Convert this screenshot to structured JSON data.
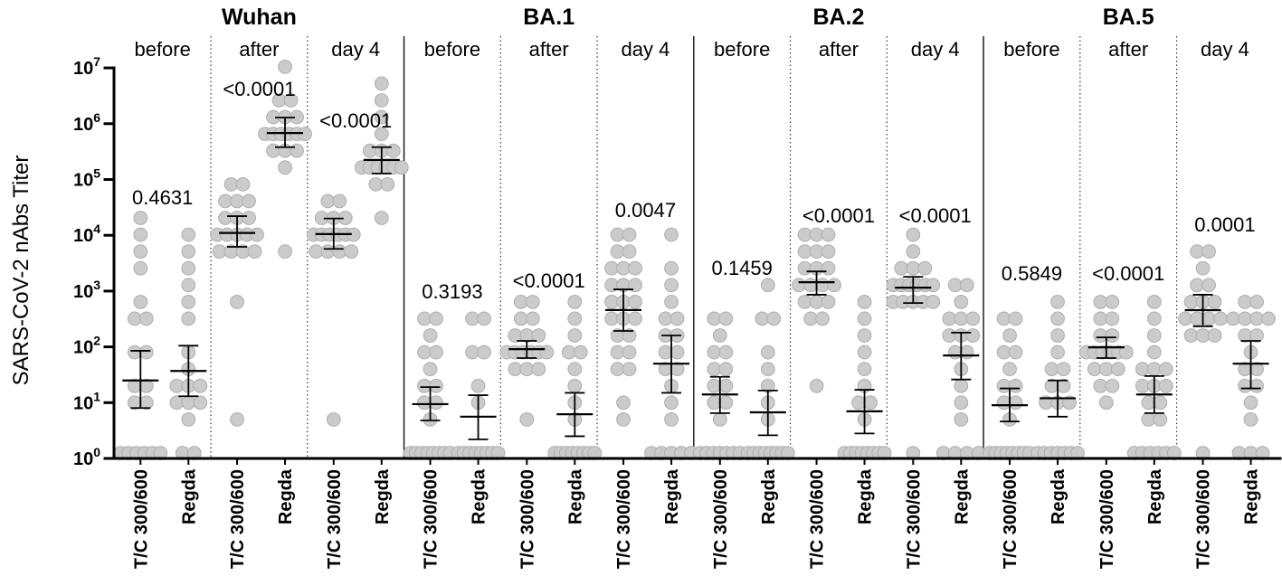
{
  "chart_data": {
    "type": "scatter",
    "ylabel": "SARS-CoV-2 nAbs Titer",
    "ylim": [
      1,
      10000000
    ],
    "y_ticks": [
      {
        "base": "10",
        "exp": "0"
      },
      {
        "base": "10",
        "exp": "1"
      },
      {
        "base": "10",
        "exp": "2"
      },
      {
        "base": "10",
        "exp": "3"
      },
      {
        "base": "10",
        "exp": "4"
      },
      {
        "base": "10",
        "exp": "5"
      },
      {
        "base": "10",
        "exp": "6"
      },
      {
        "base": "10",
        "exp": "7"
      }
    ],
    "colors": {
      "point_fill": "#cbcbcb",
      "point_stroke": "#afafaf",
      "line": "#000000"
    },
    "variants": [
      {
        "name": "Wuhan",
        "timepoints": [
          {
            "label": "before",
            "p_value": "0.4631",
            "groups": [
              {
                "name": "T/C 300/600",
                "mean": 25,
                "ci": [
                  8,
                  85
                ],
                "values": [
                  20480,
                  10240,
                  5120,
                  2560,
                  640,
                  320,
                  320,
                  80,
                  80,
                  20,
                  20,
                  10,
                  10,
                  1.25,
                  1.25,
                  1.25,
                  1.25,
                  1.25,
                  1.25
                ]
              },
              {
                "name": "Regda",
                "mean": 37,
                "ci": [
                  13,
                  105
                ],
                "values": [
                  10240,
                  5120,
                  2560,
                  1280,
                  640,
                  320,
                  80,
                  40,
                  20,
                  20,
                  20,
                  10,
                  10,
                  10,
                  5,
                  1.25,
                  1.25
                ]
              }
            ]
          },
          {
            "label": "after",
            "p_value": "<0.0001",
            "groups": [
              {
                "name": "T/C 300/600",
                "mean": 11000,
                "ci": [
                  6200,
                  22000
                ],
                "values": [
                  81920,
                  81920,
                  40960,
                  40960,
                  40960,
                  20480,
                  20480,
                  20480,
                  10240,
                  10240,
                  10240,
                  10240,
                  10240,
                  5120,
                  5120,
                  5120,
                  5120,
                  640,
                  5
                ]
              },
              {
                "name": "Regda",
                "mean": 680000,
                "ci": [
                  380000,
                  1290000
                ],
                "values": [
                  10485760,
                  2621440,
                  2621440,
                  1310720,
                  1310720,
                  1310720,
                  655360,
                  655360,
                  655360,
                  655360,
                  655360,
                  655360,
                  327680,
                  327680,
                  327680,
                  163840,
                  5120
                ]
              }
            ]
          },
          {
            "label": "day 4",
            "p_value": "<0.0001",
            "groups": [
              {
                "name": "T/C 300/600",
                "mean": 10500,
                "ci": [
                  5700,
                  20000
                ],
                "values": [
                  40960,
                  40960,
                  20480,
                  20480,
                  20480,
                  10240,
                  10240,
                  10240,
                  10240,
                  10240,
                  10240,
                  5120,
                  5120,
                  5120,
                  5120,
                  5
                ]
              },
              {
                "name": "Regda",
                "mean": 224000,
                "ci": [
                  128000,
                  380000
                ],
                "values": [
                  5242880,
                  2621440,
                  1310720,
                  655360,
                  327680,
                  327680,
                  327680,
                  163840,
                  163840,
                  163840,
                  163840,
                  163840,
                  163840,
                  81920,
                  81920,
                  20480
                ]
              }
            ]
          }
        ]
      },
      {
        "name": "BA.1",
        "timepoints": [
          {
            "label": "before",
            "p_value": "0.3193",
            "groups": [
              {
                "name": "T/C 300/600",
                "mean": 9.4,
                "ci": [
                  4.8,
                  19
                ],
                "values": [
                  320,
                  320,
                  160,
                  80,
                  80,
                  40,
                  20,
                  20,
                  10,
                  10,
                  5,
                  1.25,
                  1.25,
                  1.25,
                  1.25,
                  1.25,
                  1.25,
                  1.25,
                  1.25
                ]
              },
              {
                "name": "Regda",
                "mean": 5.6,
                "ci": [
                  2.2,
                  13.6
                ],
                "values": [
                  320,
                  320,
                  80,
                  80,
                  20,
                  10,
                  1.25,
                  1.25,
                  1.25,
                  1.25,
                  1.25,
                  1.25,
                  1.25,
                  1.25
                ]
              }
            ]
          },
          {
            "label": "after",
            "p_value": "<0.0001",
            "groups": [
              {
                "name": "T/C 300/600",
                "mean": 91,
                "ci": [
                  63,
                  128
                ],
                "values": [
                  640,
                  640,
                  320,
                  320,
                  160,
                  160,
                  160,
                  80,
                  80,
                  80,
                  80,
                  80,
                  80,
                  40,
                  40,
                  40,
                  5
                ]
              },
              {
                "name": "Regda",
                "mean": 6.2,
                "ci": [
                  2.5,
                  15
                ],
                "values": [
                  640,
                  320,
                  160,
                  80,
                  80,
                  40,
                  20,
                  10,
                  5,
                  1.25,
                  1.25,
                  1.25,
                  1.25,
                  1.25,
                  1.25,
                  1.25,
                  1.25
                ]
              }
            ]
          },
          {
            "label": "day 4",
            "p_value": "0.0047",
            "groups": [
              {
                "name": "T/C 300/600",
                "mean": 457,
                "ci": [
                  193,
                  1070
                ],
                "values": [
                  10240,
                  10240,
                  5120,
                  5120,
                  2560,
                  2560,
                  2560,
                  1280,
                  1280,
                  1280,
                  640,
                  640,
                  640,
                  320,
                  320,
                  320,
                  160,
                  160,
                  80,
                  80,
                  40,
                  40,
                  10,
                  5
                ]
              },
              {
                "name": "Regda",
                "mean": 50,
                "ci": [
                  15,
                  160
                ],
                "values": [
                  10240,
                  2560,
                  1280,
                  640,
                  320,
                  320,
                  160,
                  160,
                  80,
                  80,
                  40,
                  40,
                  20,
                  10,
                  5,
                  1.25,
                  1.25,
                  1.25,
                  1.25,
                  1.25
                ]
              }
            ]
          }
        ]
      },
      {
        "name": "BA.2",
        "timepoints": [
          {
            "label": "before",
            "p_value": "0.1459",
            "groups": [
              {
                "name": "T/C 300/600",
                "mean": 14,
                "ci": [
                  6.5,
                  29
                ],
                "values": [
                  320,
                  320,
                  160,
                  80,
                  80,
                  40,
                  40,
                  20,
                  20,
                  10,
                  10,
                  5,
                  1.25,
                  1.25,
                  1.25,
                  1.25,
                  1.25,
                  1.25,
                  1.25
                ]
              },
              {
                "name": "Regda",
                "mean": 6.7,
                "ci": [
                  2.6,
                  16.5
                ],
                "values": [
                  1280,
                  320,
                  320,
                  80,
                  40,
                  20,
                  10,
                  5,
                  1.25,
                  1.25,
                  1.25,
                  1.25,
                  1.25,
                  1.25,
                  1.25,
                  1.25
                ]
              }
            ]
          },
          {
            "label": "after",
            "p_value": "<0.0001",
            "groups": [
              {
                "name": "T/C 300/600",
                "mean": 1440,
                "ci": [
                  860,
                  2250
                ],
                "values": [
                  10240,
                  10240,
                  10240,
                  5120,
                  5120,
                  5120,
                  2560,
                  2560,
                  2560,
                  1280,
                  1280,
                  1280,
                  1280,
                  640,
                  640,
                  640,
                  320,
                  320,
                  20
                ]
              },
              {
                "name": "Regda",
                "mean": 7,
                "ci": [
                  2.8,
                  17
                ],
                "values": [
                  640,
                  320,
                  160,
                  80,
                  40,
                  20,
                  10,
                  10,
                  5,
                  1.25,
                  1.25,
                  1.25,
                  1.25,
                  1.25,
                  1.25,
                  1.25,
                  1.25
                ]
              }
            ]
          },
          {
            "label": "day 4",
            "p_value": "<0.0001",
            "groups": [
              {
                "name": "T/C 300/600",
                "mean": 1150,
                "ci": [
                  610,
                  1800
                ],
                "values": [
                  10240,
                  5120,
                  2560,
                  2560,
                  2560,
                  1280,
                  1280,
                  1280,
                  1280,
                  1280,
                  1280,
                  640,
                  640,
                  640,
                  640,
                  640,
                  1.25
                ]
              },
              {
                "name": "Regda",
                "mean": 70,
                "ci": [
                  26,
                  180
                ],
                "values": [
                  1280,
                  1280,
                  640,
                  320,
                  320,
                  320,
                  160,
                  160,
                  160,
                  80,
                  80,
                  40,
                  20,
                  10,
                  5,
                  1.25,
                  1.25,
                  1.25,
                  1.25
                ]
              }
            ]
          }
        ]
      },
      {
        "name": "BA.5",
        "timepoints": [
          {
            "label": "before",
            "p_value": "0.5849",
            "groups": [
              {
                "name": "T/C 300/600",
                "mean": 9,
                "ci": [
                  4.6,
                  18
                ],
                "values": [
                  320,
                  320,
                  160,
                  80,
                  80,
                  40,
                  20,
                  20,
                  10,
                  10,
                  5,
                  1.25,
                  1.25,
                  1.25,
                  1.25,
                  1.25,
                  1.25,
                  1.25,
                  1.25
                ]
              },
              {
                "name": "Regda",
                "mean": 12,
                "ci": [
                  5.6,
                  25
                ],
                "values": [
                  640,
                  320,
                  160,
                  80,
                  40,
                  40,
                  20,
                  20,
                  10,
                  10,
                  10,
                  1.25,
                  1.25,
                  1.25,
                  1.25,
                  1.25,
                  1.25,
                  1.25
                ]
              }
            ]
          },
          {
            "label": "after",
            "p_value": "<0.0001",
            "groups": [
              {
                "name": "T/C 300/600",
                "mean": 98,
                "ci": [
                  63,
                  148
                ],
                "values": [
                  640,
                  640,
                  320,
                  320,
                  160,
                  160,
                  80,
                  80,
                  80,
                  80,
                  80,
                  80,
                  40,
                  40,
                  40,
                  20,
                  20,
                  10
                ]
              },
              {
                "name": "Regda",
                "mean": 14,
                "ci": [
                  6.5,
                  30
                ],
                "values": [
                  640,
                  320,
                  160,
                  80,
                  40,
                  40,
                  40,
                  20,
                  20,
                  20,
                  10,
                  10,
                  5,
                  5,
                  1.25,
                  1.25,
                  1.25,
                  1.25,
                  1.25,
                  1.25
                ]
              }
            ]
          },
          {
            "label": "day 4",
            "p_value": "0.0001",
            "groups": [
              {
                "name": "T/C 300/600",
                "mean": 455,
                "ci": [
                  234,
                  860
                ],
                "values": [
                  5120,
                  5120,
                  2560,
                  1280,
                  1280,
                  640,
                  640,
                  640,
                  320,
                  320,
                  320,
                  320,
                  160,
                  160,
                  160,
                  1.25
                ]
              },
              {
                "name": "Regda",
                "mean": 50,
                "ci": [
                  18,
                  128
                ],
                "values": [
                  640,
                  640,
                  320,
                  320,
                  320,
                  320,
                  160,
                  160,
                  80,
                  40,
                  40,
                  20,
                  20,
                  10,
                  5,
                  1.25,
                  1.25,
                  1.25
                ]
              }
            ]
          }
        ]
      }
    ]
  }
}
